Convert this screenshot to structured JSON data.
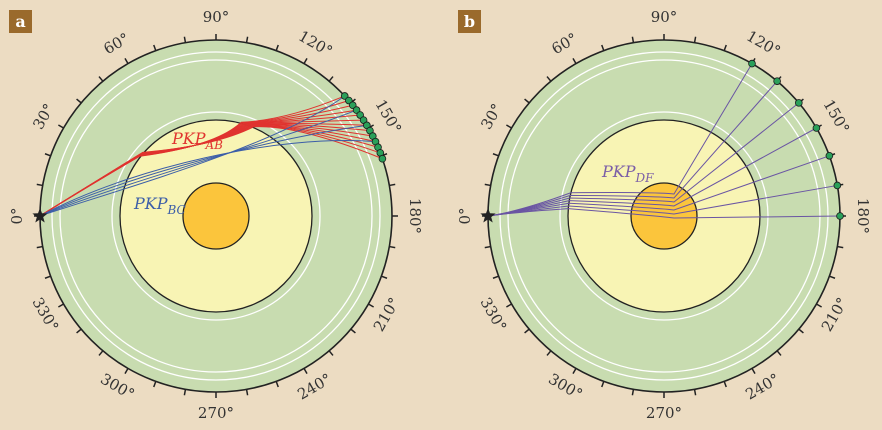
{
  "panels": [
    {
      "id": "a",
      "letter": "a",
      "label_main": "PKP",
      "label_sub": "AB",
      "label_color": "#e0332f",
      "label2_main": "PKP",
      "label2_sub": "BC",
      "label2_color": "#3c5ea8",
      "degree_labels": [
        "0°",
        "30°",
        "60°",
        "90°",
        "120°",
        "150°",
        "180°",
        "210°",
        "240°",
        "270°",
        "300°",
        "330°"
      ],
      "receiver_angles": [
        137,
        139,
        141,
        143,
        145,
        147,
        149,
        151,
        153,
        155,
        157,
        159,
        161
      ],
      "ab_color": "#e0332f",
      "bc_color": "#3c5ea8"
    },
    {
      "id": "b",
      "letter": "b",
      "label_main": "PKP",
      "label_sub": "DF",
      "label_color": "#7b5ea7",
      "degree_labels": [
        "0°",
        "30°",
        "60°",
        "90°",
        "120°",
        "150°",
        "180°",
        "210°",
        "240°",
        "270°",
        "300°",
        "330°"
      ],
      "receiver_angles": [
        120,
        130,
        140,
        150,
        160,
        170,
        180
      ],
      "df_color": "#6a55a3"
    }
  ],
  "colors": {
    "background": "#ecdcc2",
    "mantle": "#c8dcb0",
    "outer_core": "#f8f4b4",
    "inner_core": "#fbc53c",
    "letter_box": "#9a6a2c",
    "receiver": "#2aa05a",
    "source": "#222222"
  }
}
